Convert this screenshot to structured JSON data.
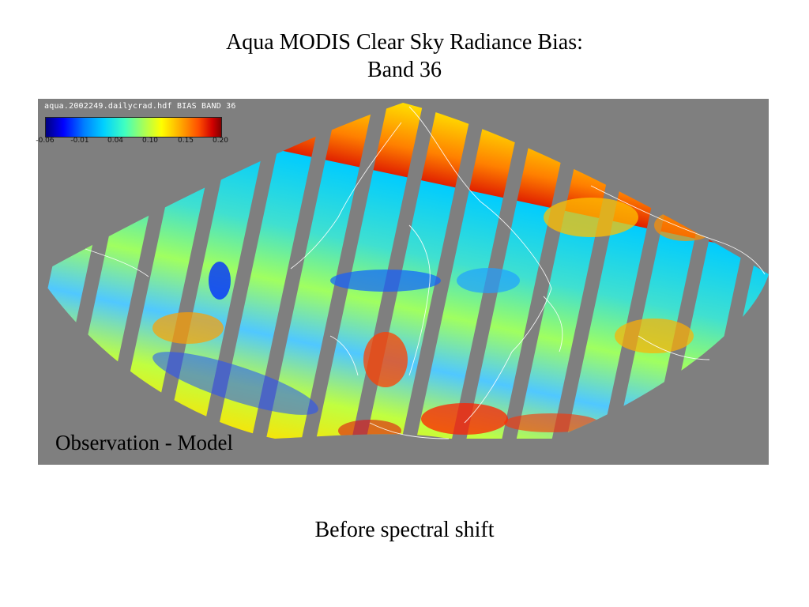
{
  "title": {
    "line1": "Aqua MODIS Clear Sky Radiance Bias:",
    "line2": "Band 36"
  },
  "map": {
    "file_label": "aqua.2002249.dailycrad.hdf BIAS BAND 36",
    "projection": "sinusoidal",
    "background_color": "#7f7f7f",
    "overlay_label": "Observation - Model",
    "colorbar": {
      "min": -0.06,
      "max": 0.2,
      "ticks": [
        "-0.06",
        "-0.01",
        "0.04",
        "0.10",
        "0.15",
        "0.20"
      ],
      "colormap": [
        "#000080",
        "#0000ff",
        "#00d0ff",
        "#a0ff60",
        "#ffff00",
        "#ff5000",
        "#800000"
      ]
    }
  },
  "caption": "Before spectral shift"
}
